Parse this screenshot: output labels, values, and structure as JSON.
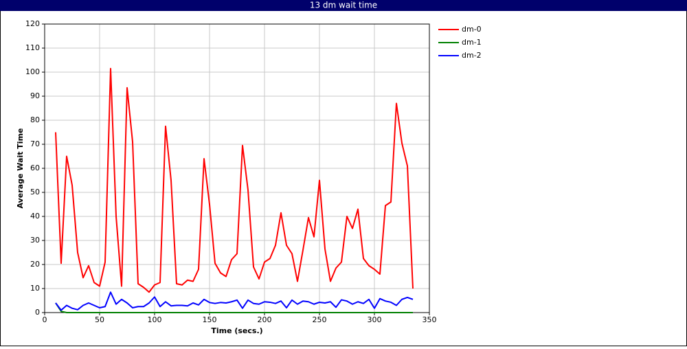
{
  "chart_data": {
    "type": "line",
    "title": "13 dm wait time",
    "x_label": "Time (secs.)",
    "y_label": "Average Wait Time",
    "xlim": [
      0,
      350
    ],
    "ylim": [
      0,
      120
    ],
    "xticks": [
      0,
      50,
      100,
      150,
      200,
      250,
      300,
      350
    ],
    "yticks": [
      0,
      10,
      20,
      30,
      40,
      50,
      60,
      70,
      80,
      90,
      100,
      110,
      120
    ],
    "grid": true,
    "legend": "right",
    "x": [
      10,
      15,
      20,
      25,
      30,
      35,
      40,
      45,
      50,
      55,
      60,
      65,
      70,
      75,
      80,
      85,
      90,
      95,
      100,
      105,
      110,
      115,
      120,
      125,
      130,
      135,
      140,
      145,
      150,
      155,
      160,
      165,
      170,
      175,
      180,
      185,
      190,
      195,
      200,
      205,
      210,
      215,
      220,
      225,
      230,
      235,
      240,
      245,
      250,
      255,
      260,
      265,
      270,
      275,
      280,
      285,
      290,
      295,
      300,
      305,
      310,
      315,
      320,
      325,
      330,
      335
    ],
    "series": [
      {
        "name": "dm-0",
        "color": "#ff0000",
        "values": [
          75,
          20.5,
          65,
          53,
          25,
          14.5,
          19.5,
          12.5,
          11,
          21,
          101.5,
          40,
          11,
          93.5,
          71,
          12,
          10.5,
          8.5,
          11.5,
          12.5,
          77.5,
          55,
          12,
          11.5,
          13.5,
          13,
          18,
          64,
          45,
          20.5,
          16.5,
          15,
          22,
          24.5,
          69.5,
          51,
          19,
          14,
          21,
          22.5,
          28,
          41.5,
          28,
          24.5,
          13,
          26,
          39.5,
          31.5,
          55,
          26.5,
          13,
          18.5,
          21,
          40,
          35,
          43,
          22.5,
          19.5,
          18,
          16,
          44.5,
          46,
          87,
          70.5,
          61,
          10
        ]
      },
      {
        "name": "dm-1",
        "color": "#008000",
        "values": [
          4,
          0.5,
          0,
          0,
          0,
          0,
          0,
          0,
          0,
          0,
          0,
          0,
          0,
          0,
          0,
          0,
          0,
          0,
          0,
          0,
          0,
          0,
          0,
          0,
          0,
          0,
          0,
          0,
          0,
          0,
          0,
          0,
          0,
          0,
          0,
          0,
          0,
          0,
          0,
          0,
          0,
          0,
          0,
          0,
          0,
          0,
          0,
          0,
          0,
          0,
          0,
          0,
          0,
          0,
          0,
          0,
          0,
          0,
          0,
          0,
          0,
          0,
          0,
          0,
          0,
          0
        ]
      },
      {
        "name": "dm-2",
        "color": "#0000ff",
        "values": [
          4,
          1,
          3,
          1.8,
          1.2,
          3,
          4,
          3,
          2,
          2.5,
          8.5,
          3.5,
          5.5,
          4,
          2,
          2.5,
          2.5,
          4,
          6.5,
          2.5,
          4.5,
          2.8,
          3,
          3,
          2.8,
          4,
          3.2,
          5.5,
          4.2,
          3.8,
          4.2,
          4,
          4.5,
          5.2,
          1.8,
          5.2,
          3.8,
          3.5,
          4.5,
          4.3,
          3.8,
          4.8,
          2,
          5.2,
          3.5,
          4.8,
          4.5,
          3.5,
          4.3,
          4,
          4.5,
          2.2,
          5.3,
          4.8,
          3.5,
          4.5,
          3.8,
          5.5,
          1.8,
          5.8,
          4.8,
          4.3,
          3,
          5.5,
          6.3,
          5.5
        ]
      }
    ]
  }
}
